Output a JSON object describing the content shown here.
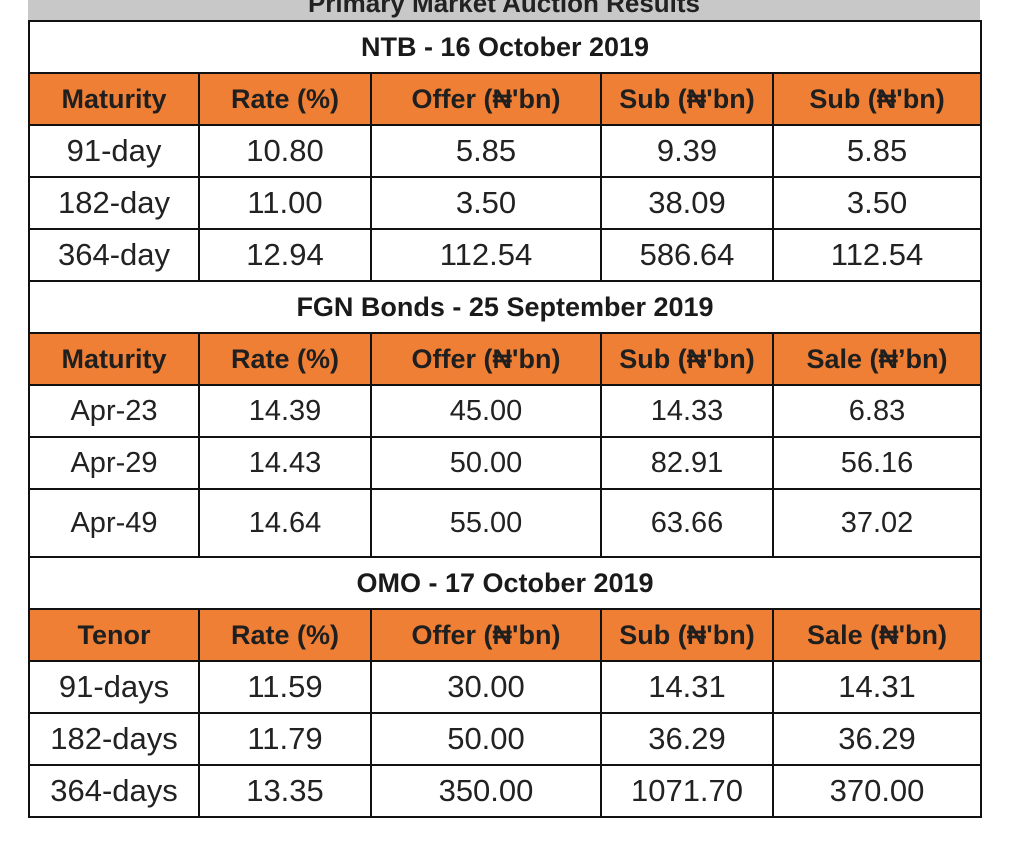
{
  "title": "Primary Market Auction  Results",
  "sections": [
    {
      "heading": "NTB - 16 October 2019",
      "columns": [
        "Maturity",
        "Rate (%)",
        "Offer (₦'bn)",
        "Sub (₦'bn)",
        "Sub (₦'bn)"
      ],
      "rows": [
        [
          "91-day",
          "10.80",
          "5.85",
          "9.39",
          "5.85"
        ],
        [
          "182-day",
          "11.00",
          "3.50",
          "38.09",
          "3.50"
        ],
        [
          "364-day",
          "12.94",
          "112.54",
          "586.64",
          "112.54"
        ]
      ]
    },
    {
      "heading": "FGN Bonds - 25 September 2019",
      "columns": [
        "Maturity",
        "Rate (%)",
        "Offer (₦'bn)",
        "Sub (₦'bn)",
        "Sale (₦’bn)"
      ],
      "rows": [
        [
          "Apr-23",
          "14.39",
          "45.00",
          "14.33",
          "6.83"
        ],
        [
          "Apr-29",
          "14.43",
          "50.00",
          "82.91",
          "56.16"
        ],
        [
          "Apr-49",
          "14.64",
          "55.00",
          "63.66",
          "37.02"
        ]
      ]
    },
    {
      "heading": "OMO - 17 October 2019",
      "columns": [
        "Tenor",
        "Rate (%)",
        "Offer (₦'bn)",
        "Sub (₦'bn)",
        "Sale (₦'bn)"
      ],
      "rows": [
        [
          "91-days",
          "11.59",
          "30.00",
          "14.31",
          "14.31"
        ],
        [
          "182-days",
          "11.79",
          "50.00",
          "36.29",
          "36.29"
        ],
        [
          "364-days",
          "13.35",
          "350.00",
          "1071.70",
          "370.00"
        ]
      ]
    }
  ],
  "colors": {
    "header_fill": "#ee7f35",
    "title_bar": "#c8c8c8",
    "border": "#111111"
  }
}
